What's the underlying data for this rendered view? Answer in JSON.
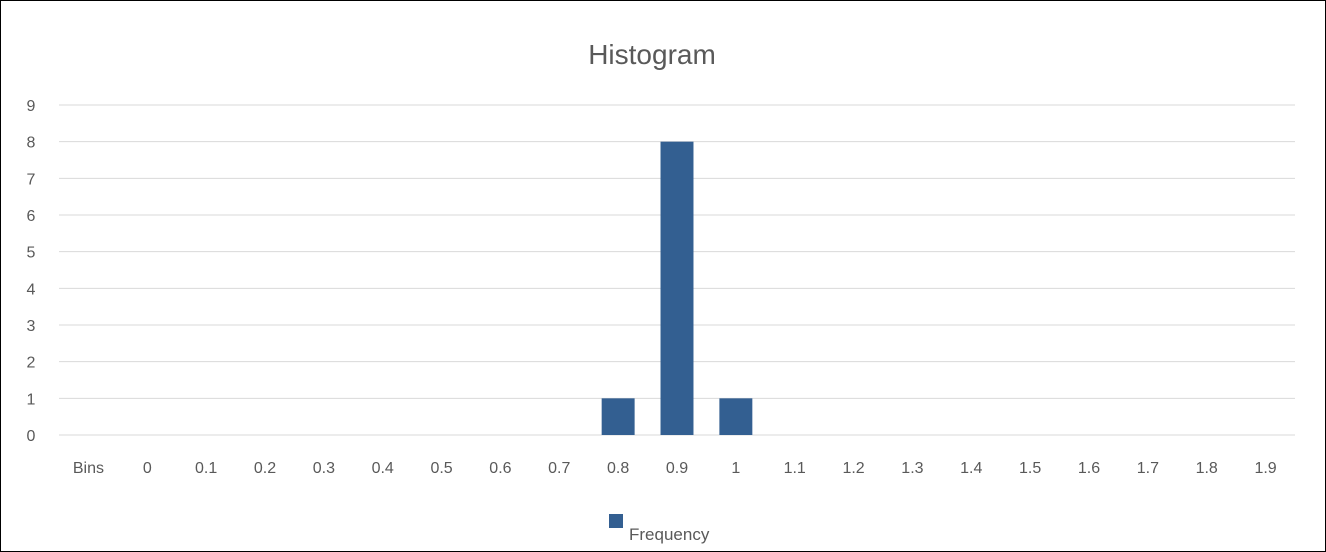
{
  "chart_data": {
    "type": "bar",
    "title": "Histogram",
    "xlabel": "",
    "ylabel": "",
    "categories": [
      "Bins",
      "0",
      "0.1",
      "0.2",
      "0.3",
      "0.4",
      "0.5",
      "0.6",
      "0.7",
      "0.8",
      "0.9",
      "1",
      "1.1",
      "1.2",
      "1.3",
      "1.4",
      "1.5",
      "1.6",
      "1.7",
      "1.8",
      "1.9"
    ],
    "series": [
      {
        "name": "Frequency",
        "values": [
          0,
          0,
          0,
          0,
          0,
          0,
          0,
          0,
          0,
          1,
          8,
          1,
          0,
          0,
          0,
          0,
          0,
          0,
          0,
          0,
          0
        ]
      }
    ],
    "yticks": [
      "0",
      "1",
      "2",
      "3",
      "4",
      "5",
      "6",
      "7",
      "8",
      "9"
    ],
    "ylim": [
      0,
      9
    ],
    "grid": true,
    "legend_position": "bottom",
    "bar_color": "#335f91",
    "legend": {
      "label": "Frequency"
    }
  }
}
